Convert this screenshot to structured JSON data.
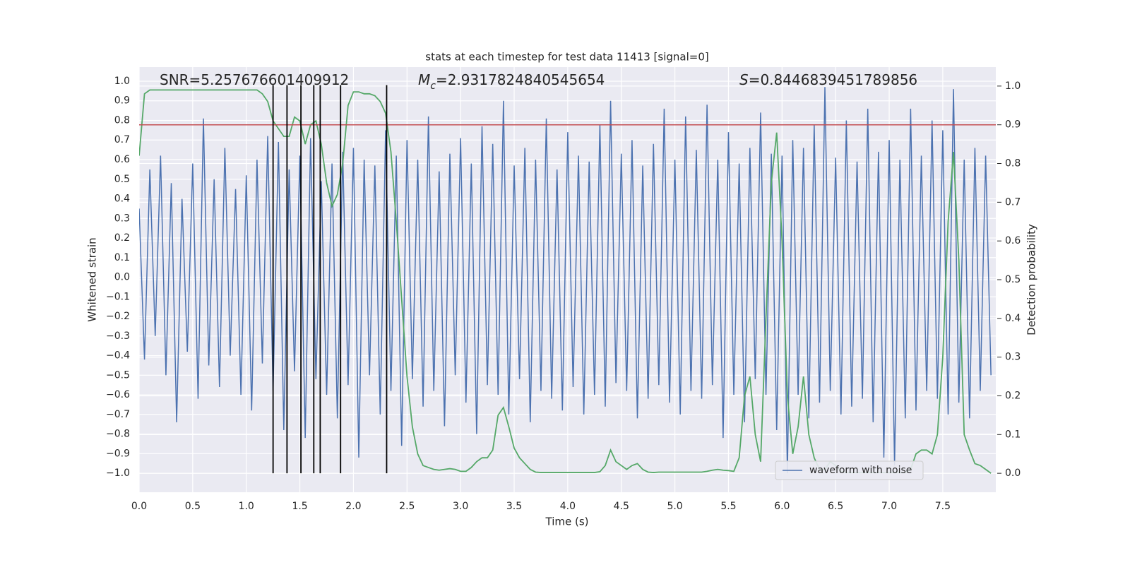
{
  "chart_data": {
    "type": "line",
    "title": "stats at each timestep for test data 11413 [signal=0]",
    "xlabel": "Time (s)",
    "ylabel": "Whitened strain",
    "y2label": "Detection probability",
    "annotations": [
      {
        "text": "SNR=5.257676601409912"
      },
      {
        "symbol": "M",
        "subscript": "c",
        "text": "=2.9317824840545654"
      },
      {
        "symbol": "S",
        "text": "=0.8446839451789856"
      }
    ],
    "grid": true,
    "legend": "lower right",
    "xlim": [
      0,
      7.995
    ],
    "ylim": [
      -1.097,
      1.072
    ],
    "y2lim": [
      -0.049,
      1.049
    ],
    "xticks": [
      {
        "value": 0,
        "label": "0.0"
      },
      0.5,
      {
        "value": 1,
        "label": "1.0"
      },
      1.5,
      {
        "value": 2,
        "label": "2.0"
      },
      2.5,
      {
        "value": 3,
        "label": "3.0"
      },
      3.5,
      {
        "value": 4,
        "label": "4.0"
      },
      4.5,
      {
        "value": 5,
        "label": "5.0"
      },
      5.5,
      {
        "value": 6,
        "label": "6.0"
      },
      6.5,
      {
        "value": 7,
        "label": "7.0"
      },
      7.5
    ],
    "yticks": [
      {
        "value": -1,
        "label": "−1.0"
      },
      {
        "value": -0.9,
        "label": "−0.9"
      },
      {
        "value": -0.8,
        "label": "−0.8"
      },
      {
        "value": -0.7,
        "label": "−0.7"
      },
      {
        "value": -0.6,
        "label": "−0.6"
      },
      {
        "value": -0.5,
        "label": "−0.5"
      },
      {
        "value": -0.4,
        "label": "−0.4"
      },
      {
        "value": -0.3,
        "label": "−0.3"
      },
      {
        "value": -0.2,
        "label": "−0.2"
      },
      {
        "value": -0.1,
        "label": "−0.1"
      },
      {
        "value": 0,
        "label": "0.0"
      },
      0.1,
      0.2,
      0.3,
      0.4,
      0.5,
      0.6,
      0.7,
      0.8,
      0.9,
      {
        "value": 1,
        "label": "1.0"
      }
    ],
    "y2ticks": [
      {
        "value": 0,
        "label": "0.0"
      },
      0.1,
      0.2,
      0.3,
      0.4,
      0.5,
      0.6,
      0.7,
      0.8,
      0.9,
      {
        "value": 1,
        "label": "1.0"
      }
    ],
    "hlines": [
      {
        "value": 0.9,
        "axis": "y2",
        "color": "#c44e52"
      }
    ],
    "vlines": {
      "x": [
        1.25,
        1.38,
        1.51,
        1.63,
        1.69,
        1.88,
        2.31
      ],
      "ymin": -1,
      "ymax": 0.98,
      "color": "#000000"
    },
    "x": [
      0,
      0.05,
      0.1,
      0.15,
      0.2,
      0.25,
      0.3,
      0.35,
      0.4,
      0.45,
      0.5,
      0.55,
      0.6,
      0.65,
      0.7,
      0.75,
      0.8,
      0.85,
      0.9,
      0.95,
      1,
      1.05,
      1.1,
      1.15,
      1.2,
      1.25,
      1.3,
      1.35,
      1.4,
      1.45,
      1.5,
      1.55,
      1.6,
      1.65,
      1.7,
      1.75,
      1.8,
      1.85,
      1.9,
      1.95,
      2,
      2.05,
      2.1,
      2.15,
      2.2,
      2.25,
      2.3,
      2.35,
      2.4,
      2.45,
      2.5,
      2.55,
      2.6,
      2.65,
      2.7,
      2.75,
      2.8,
      2.85,
      2.9,
      2.95,
      3,
      3.05,
      3.1,
      3.15,
      3.2,
      3.25,
      3.3,
      3.35,
      3.4,
      3.45,
      3.5,
      3.55,
      3.6,
      3.65,
      3.7,
      3.75,
      3.8,
      3.85,
      3.9,
      3.95,
      4,
      4.05,
      4.1,
      4.15,
      4.2,
      4.25,
      4.3,
      4.35,
      4.4,
      4.45,
      4.5,
      4.55,
      4.6,
      4.65,
      4.7,
      4.75,
      4.8,
      4.85,
      4.9,
      4.95,
      5,
      5.05,
      5.1,
      5.15,
      5.2,
      5.25,
      5.3,
      5.35,
      5.4,
      5.45,
      5.5,
      5.55,
      5.6,
      5.65,
      5.7,
      5.75,
      5.8,
      5.85,
      5.9,
      5.95,
      6,
      6.05,
      6.1,
      6.15,
      6.2,
      6.25,
      6.3,
      6.35,
      6.4,
      6.45,
      6.5,
      6.55,
      6.6,
      6.65,
      6.7,
      6.75,
      6.8,
      6.85,
      6.9,
      6.95,
      7,
      7.05,
      7.1,
      7.15,
      7.2,
      7.25,
      7.3,
      7.35,
      7.4,
      7.45,
      7.5,
      7.55,
      7.6,
      7.65,
      7.7,
      7.75,
      7.8,
      7.85,
      7.9,
      7.95
    ],
    "series": [
      {
        "name": "waveform with noise",
        "color": "#4c72b0",
        "axis": "y",
        "values": [
          0.35,
          -0.42,
          0.55,
          -0.3,
          0.62,
          -0.5,
          0.48,
          -0.74,
          0.4,
          -0.38,
          0.58,
          -0.62,
          0.81,
          -0.45,
          0.5,
          -0.56,
          0.66,
          -0.4,
          0.45,
          -0.6,
          0.52,
          -0.68,
          0.6,
          -0.44,
          0.72,
          -0.58,
          0.69,
          -0.78,
          0.55,
          -0.48,
          0.62,
          -0.82,
          0.71,
          -0.52,
          0.49,
          -0.6,
          0.58,
          -0.72,
          0.64,
          -0.55,
          0.66,
          -0.92,
          0.6,
          -0.5,
          0.57,
          -0.7,
          0.75,
          -0.58,
          0.62,
          -0.86,
          0.7,
          -0.52,
          0.6,
          -0.66,
          0.82,
          -0.58,
          0.54,
          -0.76,
          0.63,
          -0.5,
          0.71,
          -0.64,
          0.58,
          -0.8,
          0.77,
          -0.55,
          0.68,
          -0.6,
          0.9,
          -0.7,
          0.57,
          -0.52,
          0.66,
          -0.74,
          0.6,
          -0.58,
          0.81,
          -0.62,
          0.55,
          -0.68,
          0.74,
          -0.56,
          0.62,
          -0.7,
          0.59,
          -0.6,
          0.78,
          -0.66,
          0.9,
          -0.54,
          0.63,
          -0.58,
          0.7,
          -0.72,
          0.57,
          -0.62,
          0.68,
          -0.55,
          0.86,
          -0.64,
          0.6,
          -0.7,
          0.82,
          -0.58,
          0.65,
          -0.62,
          0.88,
          -0.55,
          0.6,
          -0.82,
          0.74,
          -0.6,
          0.58,
          -0.74,
          0.66,
          -0.52,
          0.84,
          -0.6,
          0.63,
          -0.78,
          0.62,
          -1.0,
          0.7,
          -0.6,
          0.66,
          -0.72,
          0.78,
          -0.64,
          0.97,
          -0.58,
          0.61,
          -0.7,
          0.8,
          -0.66,
          0.59,
          -0.62,
          0.86,
          -0.74,
          0.64,
          -0.92,
          0.7,
          -0.96,
          0.6,
          -0.72,
          0.86,
          -0.68,
          0.62,
          -0.58,
          0.8,
          -0.62,
          0.75,
          -0.7,
          0.96,
          -0.64,
          0.6,
          -0.72,
          0.66,
          -0.58,
          0.62,
          -0.5
        ]
      },
      {
        "color": "#55a868",
        "axis": "y2",
        "values": [
          0.82,
          0.98,
          0.99,
          0.99,
          0.99,
          0.99,
          0.99,
          0.99,
          0.99,
          0.99,
          0.99,
          0.99,
          0.99,
          0.99,
          0.99,
          0.99,
          0.99,
          0.99,
          0.99,
          0.99,
          0.99,
          0.99,
          0.99,
          0.98,
          0.96,
          0.91,
          0.89,
          0.87,
          0.87,
          0.92,
          0.91,
          0.85,
          0.9,
          0.91,
          0.85,
          0.75,
          0.69,
          0.72,
          0.8,
          0.95,
          0.985,
          0.985,
          0.98,
          0.98,
          0.975,
          0.96,
          0.93,
          0.83,
          0.65,
          0.45,
          0.25,
          0.12,
          0.05,
          0.02,
          0.015,
          0.01,
          0.008,
          0.01,
          0.012,
          0.01,
          0.005,
          0.005,
          0.015,
          0.03,
          0.04,
          0.04,
          0.06,
          0.15,
          0.17,
          0.12,
          0.065,
          0.04,
          0.025,
          0.01,
          0.003,
          0.002,
          0.002,
          0.002,
          0.002,
          0.002,
          0.002,
          0.002,
          0.002,
          0.002,
          0.002,
          0.002,
          0.004,
          0.02,
          0.06,
          0.03,
          0.02,
          0.01,
          0.02,
          0.025,
          0.01,
          0.003,
          0.002,
          0.003,
          0.003,
          0.003,
          0.003,
          0.003,
          0.003,
          0.003,
          0.003,
          0.003,
          0.005,
          0.008,
          0.01,
          0.008,
          0.007,
          0.005,
          0.04,
          0.2,
          0.25,
          0.1,
          0.03,
          0.4,
          0.75,
          0.88,
          0.6,
          0.2,
          0.05,
          0.12,
          0.25,
          0.1,
          0.04,
          0.01,
          0.01,
          0.03,
          0.02,
          0.005,
          0.002,
          0.002,
          0.002,
          0.002,
          0.002,
          0.002,
          0.002,
          0.002,
          0.002,
          0.002,
          0.002,
          0.002,
          0.01,
          0.05,
          0.06,
          0.06,
          0.05,
          0.1,
          0.3,
          0.65,
          0.83,
          0.55,
          0.1,
          0.06,
          0.025,
          0.02,
          0.01,
          0.0
        ]
      }
    ]
  }
}
